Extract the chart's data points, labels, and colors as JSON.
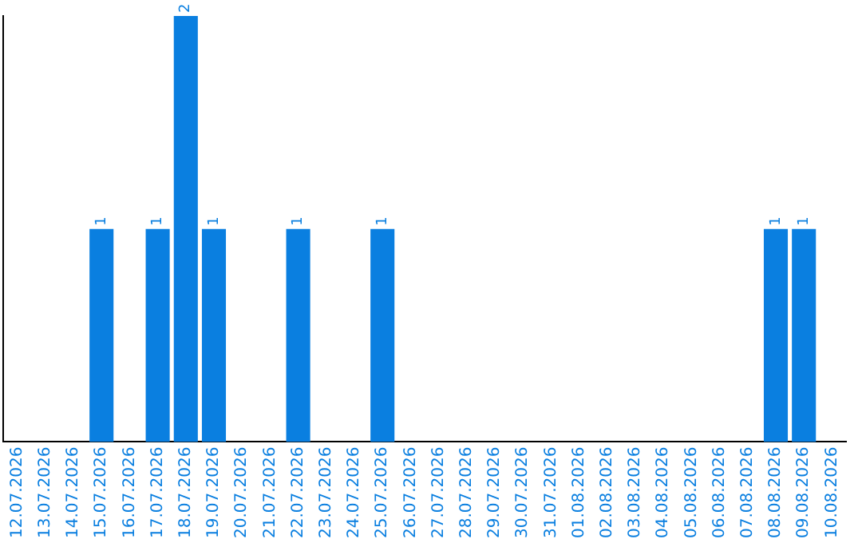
{
  "chart_data": {
    "type": "bar",
    "categories": [
      "12.07.2026",
      "13.07.2026",
      "14.07.2026",
      "15.07.2026",
      "16.07.2026",
      "17.07.2026",
      "18.07.2026",
      "19.07.2026",
      "20.07.2026",
      "21.07.2026",
      "22.07.2026",
      "23.07.2026",
      "24.07.2026",
      "25.07.2026",
      "26.07.2026",
      "27.07.2026",
      "28.07.2026",
      "29.07.2026",
      "30.07.2026",
      "31.07.2026",
      "01.08.2026",
      "02.08.2026",
      "03.08.2026",
      "04.08.2026",
      "05.08.2026",
      "06.08.2026",
      "07.08.2026",
      "08.08.2026",
      "09.08.2026",
      "10.08.2026"
    ],
    "values": [
      0,
      0,
      0,
      1,
      0,
      1,
      2,
      1,
      0,
      0,
      1,
      0,
      0,
      1,
      0,
      0,
      0,
      0,
      0,
      0,
      0,
      0,
      0,
      0,
      0,
      0,
      0,
      1,
      1,
      0
    ],
    "value_labels": [
      null,
      null,
      null,
      "1",
      null,
      "1",
      "2",
      "1",
      null,
      null,
      "1",
      null,
      null,
      "1",
      null,
      null,
      null,
      null,
      null,
      null,
      null,
      null,
      null,
      null,
      null,
      null,
      null,
      "1",
      "1",
      null
    ],
    "color": "#0a7fe0",
    "tick_labels": "x",
    "grid": false,
    "legend": false
  }
}
